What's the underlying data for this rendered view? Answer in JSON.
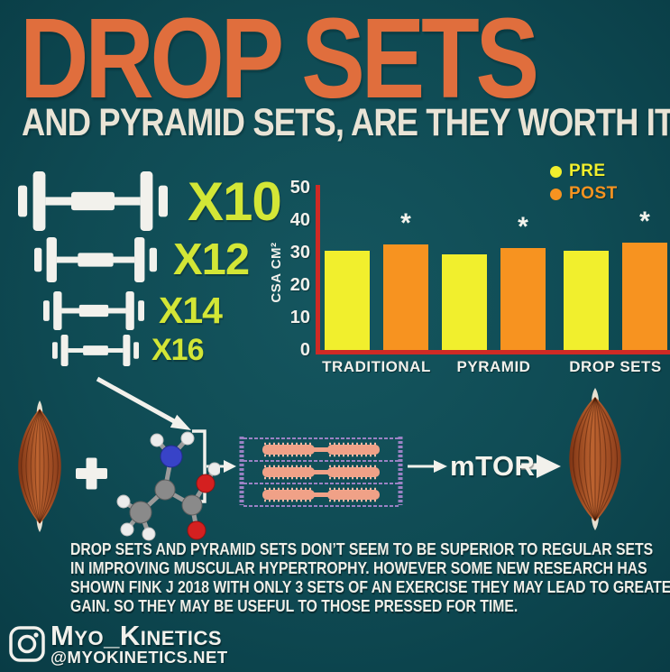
{
  "page": {
    "title": "DROP SETS",
    "subtitle": "AND PYRAMID SETS, ARE THEY WORTH IT"
  },
  "colors": {
    "background_teal": "#0F4B54",
    "title_orange": "#E06E3D",
    "subtitle_cream": "#E9E4D6",
    "rep_label_lime": "#D3E636",
    "bar_yellow": "#F1EF2D",
    "bar_orange": "#F79320",
    "axis_red": "#CF2A25",
    "text_white": "#F2F1EC",
    "muscle_brown": "#A64E26",
    "sarcomere_purple": "#9B82C4",
    "sarcomere_pink": "#F0A187"
  },
  "dumbbells": {
    "items": [
      {
        "icon": "dumbbell-icon",
        "label": "X10"
      },
      {
        "icon": "dumbbell-icon",
        "label": "X12"
      },
      {
        "icon": "dumbbell-icon",
        "label": "X14"
      },
      {
        "icon": "dumbbell-icon",
        "label": "X16"
      }
    ]
  },
  "chart_data": {
    "type": "bar",
    "title": "",
    "xlabel": "",
    "ylabel": "CSA CM²",
    "ylim": [
      0,
      50
    ],
    "yticks": [
      0,
      10,
      20,
      30,
      40,
      50
    ],
    "grid": false,
    "legend_position": "top-right",
    "categories": [
      "TRADITIONAL",
      "PYRAMID",
      "DROP SETS"
    ],
    "series": [
      {
        "name": "PRE",
        "color": "#F1EF2D",
        "values": [
          30.5,
          29.5,
          30.5
        ]
      },
      {
        "name": "POST",
        "color": "#F79320",
        "values": [
          32.5,
          31.5,
          33
        ],
        "sig_marker": "*"
      }
    ],
    "annotation_note": "* shown above each POST bar"
  },
  "diagram": {
    "plus_sign": "+",
    "mtor_label": "mTOR",
    "elements": [
      "muscle-small",
      "plus",
      "amino-acid-molecule",
      "arrow-from-dumbbells",
      "bracket",
      "sarcomere-fibers",
      "mtor-pathway",
      "muscle-large"
    ]
  },
  "paragraph": {
    "lines": [
      "DROP SETS AND PYRAMID SETS DON’T SEEM TO BE SUPERIOR TO REGULAR SETS",
      "IN IMPROVING MUSCULAR HYPERTROPHY. HOWEVER SOME NEW RESEARCH HAS",
      "SHOWN FINK J 2018 WITH ONLY 3 SETS OF AN EXERCISE THEY MAY LEAD TO GREATER",
      "GAIN. SO THEY MAY BE USEFUL TO THOSE PRESSED FOR TIME."
    ]
  },
  "footer": {
    "icon": "instagram-icon",
    "brand": "Myo_Kinetics",
    "handle": "@MYOKINETICS.NET"
  }
}
